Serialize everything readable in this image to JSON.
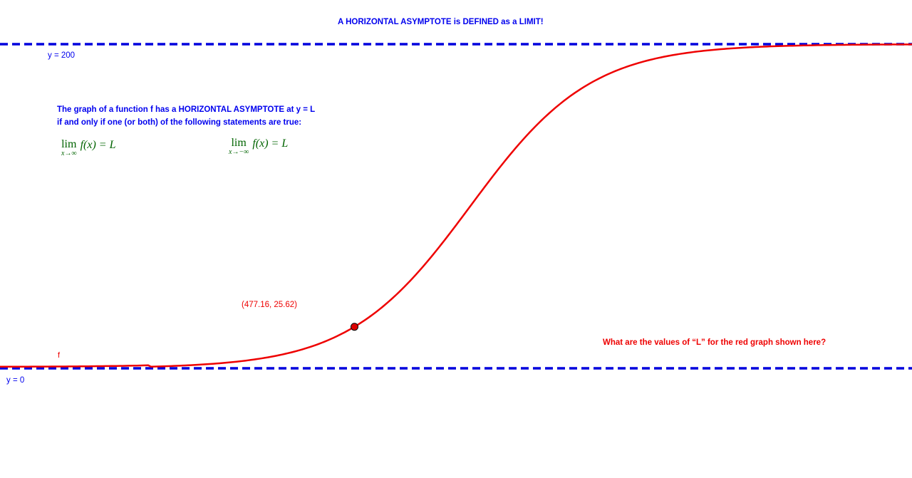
{
  "applet": {
    "title": "A HORIZONTAL ASYMPTOTE is DEFINED as a LIMIT!",
    "asymptote_top_label": "y = 200",
    "asymptote_bottom_label": "y = 0",
    "definition": {
      "line1": "The graph of a function f has a HORIZONTAL ASYMPTOTE at y = L",
      "line2": "if and only if one (or both) of the following statements are true:"
    },
    "limits": [
      {
        "lim": "lim",
        "sub": "x→∞",
        "expr": "f(x) = L"
      },
      {
        "lim": "lim",
        "sub": "x→−∞",
        "expr": "f(x) = L"
      }
    ],
    "point_label": "(477.16, 25.62)",
    "function_label": "f",
    "question": "What are the values of “L” for the red graph shown here?"
  },
  "colors": {
    "blue_text": "#0000ee",
    "blue_line": "#0000dd",
    "red": "#ee0000",
    "green_math": "#006400",
    "point_fill": "#dd0000"
  },
  "curve": {
    "type": "logistic",
    "upper_asymptote": 200,
    "lower_asymptote": 0,
    "highlighted_point": {
      "x": 477.16,
      "y": 25.62
    }
  }
}
